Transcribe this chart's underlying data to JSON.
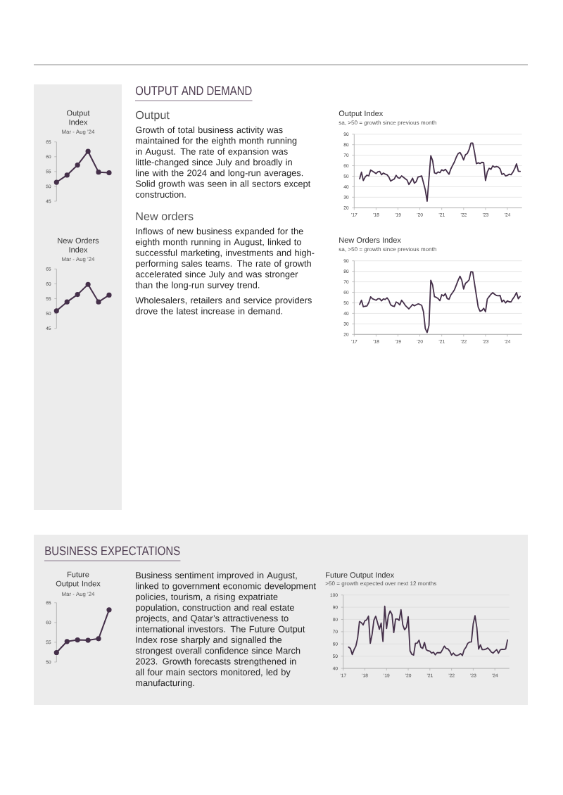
{
  "chart_data": [
    {
      "type": "line",
      "title": "Output Index",
      "subtitle": "Mar - Aug ’24",
      "categories": [
        null,
        null,
        null,
        null,
        null,
        null
      ],
      "values": [
        51.4,
        53.8,
        57.2,
        61.8,
        54.8,
        54.6
      ],
      "color": "#45304a",
      "ylim": [
        45,
        65
      ],
      "yticks": [
        45,
        50,
        55,
        60,
        65
      ],
      "marker": "circle",
      "tick_labels": "y"
    },
    {
      "type": "line",
      "title": "Output Index",
      "subtitle": "sa, >50 = growth since previous month",
      "x": [
        "2017-04",
        "2017-05",
        "2017-06",
        "2017-07",
        "2017-08",
        "2017-09",
        "2017-10",
        "2017-11",
        "2017-12",
        "2018-01",
        "2018-02",
        "2018-03",
        "2018-04",
        "2018-05",
        "2018-06",
        "2018-07",
        "2018-08",
        "2018-09",
        "2018-10",
        "2018-11",
        "2018-12",
        "2019-01",
        "2019-02",
        "2019-03",
        "2019-04",
        "2019-05",
        "2019-06",
        "2019-07",
        "2019-08",
        "2019-09",
        "2019-10",
        "2019-11",
        "2019-12",
        "2020-01",
        "2020-02",
        "2020-03",
        "2020-04",
        "2020-05",
        "2020-07",
        "2020-08",
        "2020-09",
        "2020-10",
        "2020-11",
        "2020-12",
        "2021-01",
        "2021-02",
        "2021-03",
        "2021-04",
        "2021-05",
        "2021-06",
        "2021-07",
        "2021-08",
        "2021-09",
        "2021-10",
        "2021-11",
        "2021-12",
        "2022-01",
        "2022-02",
        "2022-03",
        "2022-04",
        "2022-05",
        "2022-06",
        "2022-07",
        "2022-08",
        "2022-09",
        "2022-10",
        "2022-11",
        "2022-12",
        "2023-01",
        "2023-02",
        "2023-03",
        "2023-04",
        "2023-05",
        "2023-06",
        "2023-07",
        "2023-08",
        "2023-09",
        "2023-10",
        "2023-11",
        "2023-12",
        "2024-01",
        "2024-02",
        "2024-03",
        "2024-04",
        "2024-05",
        "2024-06",
        "2024-07",
        "2024-08"
      ],
      "values": [
        47.6,
        53.9,
        45.9,
        49.2,
        51.0,
        50.3,
        55.9,
        54.8,
        53.7,
        52.5,
        54.3,
        54.6,
        51.4,
        53.0,
        52.1,
        51.4,
        49.2,
        45.4,
        46.5,
        47.4,
        50.8,
        48.5,
        48.1,
        50.3,
        49.0,
        47.6,
        46.3,
        42.1,
        44.8,
        48.1,
        43.4,
        44.8,
        49.2,
        49.7,
        50.3,
        43.6,
        36.9,
        26.2,
        69.5,
        64.8,
        53.2,
        52.5,
        54.1,
        53.4,
        56.1,
        55.2,
        56.6,
        54.1,
        51.9,
        57.0,
        60.4,
        63.7,
        68.2,
        71.5,
        72.6,
        69.7,
        65.5,
        70.4,
        71.5,
        75.3,
        81.5,
        81.5,
        72.6,
        61.9,
        62.8,
        62.1,
        63.2,
        63.0,
        45.9,
        54.1,
        57.5,
        56.6,
        59.9,
        58.6,
        59.2,
        58.8,
        57.0,
        51.7,
        52.5,
        50.3,
        50.8,
        51.9,
        51.4,
        53.8,
        57.2,
        61.8,
        54.8,
        54.6
      ],
      "color": "#45304a",
      "xlim": [
        "2017-01",
        "2024-09"
      ],
      "xticks": [
        {
          "value": "2017-01",
          "label": "’17"
        },
        {
          "value": "2018-01",
          "label": "’18"
        },
        {
          "value": "2019-01",
          "label": "’19"
        },
        {
          "value": "2020-01",
          "label": "’20"
        },
        {
          "value": "2021-01",
          "label": "’21"
        },
        {
          "value": "2022-01",
          "label": "’22"
        },
        {
          "value": "2023-01",
          "label": "’23"
        },
        {
          "value": "2024-01",
          "label": "’24"
        }
      ],
      "ylim": [
        20,
        90
      ],
      "yticks": [
        20,
        30,
        40,
        50,
        60,
        70,
        80,
        90
      ],
      "grid": "y",
      "annotations": [
        "OUTPUT AND DEMAND",
        "Output",
        "Growth of total business activity was maintained for the eighth month running in August. The rate of expansion was little-changed since July and broadly in line with the 2024 and long-run averages. Solid growth was seen in all sectors except construction."
      ]
    },
    {
      "type": "line",
      "title": "New Orders Index",
      "subtitle": "Mar - Aug ’24",
      "categories": [
        null,
        null,
        null,
        null,
        null,
        null
      ],
      "values": [
        50.9,
        53.9,
        56.4,
        59.8,
        53.9,
        56.2
      ],
      "color": "#45304a",
      "ylim": [
        45,
        65
      ],
      "yticks": [
        45,
        50,
        55,
        60,
        65
      ],
      "marker": "circle",
      "tick_labels": "y"
    },
    {
      "type": "line",
      "title": "New Orders Index",
      "subtitle": "sa, >50 = growth since previous month",
      "x": [
        "2017-04",
        "2017-05",
        "2017-06",
        "2017-07",
        "2017-08",
        "2017-09",
        "2017-10",
        "2017-11",
        "2017-12",
        "2018-01",
        "2018-02",
        "2018-03",
        "2018-04",
        "2018-05",
        "2018-06",
        "2018-07",
        "2018-08",
        "2018-09",
        "2018-10",
        "2018-11",
        "2018-12",
        "2019-01",
        "2019-02",
        "2019-03",
        "2019-04",
        "2019-05",
        "2019-06",
        "2019-07",
        "2019-08",
        "2019-09",
        "2019-10",
        "2019-11",
        "2019-12",
        "2020-01",
        "2020-02",
        "2020-03",
        "2020-04",
        "2020-05",
        "2020-06",
        "2020-07",
        "2020-08",
        "2020-09",
        "2020-10",
        "2020-11",
        "2020-12",
        "2021-01",
        "2021-02",
        "2021-03",
        "2021-04",
        "2021-05",
        "2021-06",
        "2021-07",
        "2021-08",
        "2021-09",
        "2021-10",
        "2021-11",
        "2021-12",
        "2022-01",
        "2022-02",
        "2022-03",
        "2022-04",
        "2022-05",
        "2022-06",
        "2022-07",
        "2022-08",
        "2022-09",
        "2022-10",
        "2022-11",
        "2022-12",
        "2023-01",
        "2023-02",
        "2023-03",
        "2023-04",
        "2023-05",
        "2023-06",
        "2023-07",
        "2023-08",
        "2023-09",
        "2023-10",
        "2023-11",
        "2023-12",
        "2024-01",
        "2024-02",
        "2024-03",
        "2024-04",
        "2024-05",
        "2024-06",
        "2024-07",
        "2024-08"
      ],
      "values": [
        48.5,
        52.5,
        46.3,
        46.8,
        47.0,
        50.3,
        55.7,
        53.9,
        53.2,
        52.5,
        53.9,
        53.9,
        51.9,
        53.7,
        53.2,
        54.8,
        52.5,
        48.1,
        47.0,
        46.5,
        50.8,
        49.9,
        48.1,
        52.5,
        50.3,
        47.6,
        45.9,
        44.3,
        46.3,
        48.5,
        47.2,
        48.1,
        49.0,
        48.5,
        47.6,
        41.4,
        25.4,
        21.8,
        28.5,
        71.5,
        67.0,
        55.9,
        55.2,
        54.1,
        52.1,
        57.7,
        56.6,
        58.8,
        54.1,
        53.4,
        57.5,
        59.9,
        62.6,
        67.0,
        71.5,
        75.3,
        71.5,
        63.2,
        68.6,
        69.9,
        71.9,
        79.7,
        79.3,
        68.2,
        57.0,
        45.9,
        42.1,
        42.7,
        44.8,
        41.6,
        53.7,
        55.9,
        58.2,
        59.7,
        58.2,
        57.0,
        56.8,
        57.0,
        51.0,
        52.5,
        49.9,
        51.9,
        51.0,
        50.9,
        53.9,
        56.4,
        59.8,
        53.9,
        56.2
      ],
      "color": "#45304a",
      "xlim": [
        "2017-01",
        "2024-09"
      ],
      "xticks": [
        {
          "value": "2017-01",
          "label": "’17"
        },
        {
          "value": "2018-01",
          "label": "’18"
        },
        {
          "value": "2019-01",
          "label": "’19"
        },
        {
          "value": "2020-01",
          "label": "’20"
        },
        {
          "value": "2021-01",
          "label": "’21"
        },
        {
          "value": "2022-01",
          "label": "’22"
        },
        {
          "value": "2023-01",
          "label": "’23"
        },
        {
          "value": "2024-01",
          "label": "’24"
        }
      ],
      "ylim": [
        20,
        90
      ],
      "yticks": [
        20,
        30,
        40,
        50,
        60,
        70,
        80,
        90
      ],
      "grid": "y",
      "annotations": [
        "New orders",
        "Inflows of new business expanded for the eighth month running in August, linked to successful marketing, investments and high-performing sales teams. The rate of growth accelerated since July and was stronger than the long-run survey trend.",
        "Wholesalers, retailers and service providers drove the latest increase in demand."
      ]
    },
    {
      "type": "line",
      "title": "Future Output Index",
      "subtitle": "Mar - Aug ’24",
      "categories": [
        null,
        null,
        null,
        null,
        null,
        null
      ],
      "values": [
        52.4,
        55.2,
        55.6,
        55.5,
        55.9,
        63.2
      ],
      "color": "#45304a",
      "ylim": [
        50,
        65
      ],
      "yticks": [
        50,
        55,
        60,
        65
      ],
      "marker": "circle",
      "tick_labels": "y",
      "annotations": [
        "BUSINESS EXPECTATIONS"
      ]
    },
    {
      "type": "line",
      "title": "Future Output Index",
      "subtitle": ">50 = growth expected over next 12 months",
      "x": [
        "2017-04",
        "2017-05",
        "2017-06",
        "2017-07",
        "2017-08",
        "2017-09",
        "2017-10",
        "2017-11",
        "2017-12",
        "2018-01",
        "2018-02",
        "2018-03",
        "2018-04",
        "2018-05",
        "2018-06",
        "2018-07",
        "2018-08",
        "2018-09",
        "2018-10",
        "2018-11",
        "2018-12",
        "2019-01",
        "2019-02",
        "2019-03",
        "2019-04",
        "2019-05",
        "2019-06",
        "2019-07",
        "2019-08",
        "2019-09",
        "2019-10",
        "2019-11",
        "2019-12",
        "2020-01",
        "2020-02",
        "2020-03",
        "2020-04",
        "2020-05",
        "2020-06",
        "2020-07",
        "2020-08",
        "2020-09",
        "2020-10",
        "2020-11",
        "2020-12",
        "2021-01",
        "2021-02",
        "2021-03",
        "2021-04",
        "2021-05",
        "2021-06",
        "2021-07",
        "2021-08",
        "2021-09",
        "2021-10",
        "2021-11",
        "2021-12",
        "2022-01",
        "2022-02",
        "2022-03",
        "2022-04",
        "2022-05",
        "2022-06",
        "2022-07",
        "2022-08",
        "2022-09",
        "2022-10",
        "2022-11",
        "2022-12",
        "2023-01",
        "2023-02",
        "2023-03",
        "2023-04",
        "2023-05",
        "2023-06",
        "2023-07",
        "2023-08",
        "2023-09",
        "2023-10",
        "2023-11",
        "2023-12",
        "2024-01",
        "2024-02",
        "2024-03",
        "2024-04",
        "2024-05",
        "2024-06",
        "2024-07",
        "2024-08"
      ],
      "values": [
        57.4,
        56.3,
        51.3,
        55.3,
        58.2,
        64.9,
        78.3,
        77.4,
        75.5,
        78.9,
        79.7,
        82.7,
        60.5,
        67.8,
        79.3,
        82.6,
        77.4,
        72.0,
        77.0,
        62.0,
        90.8,
        72.6,
        83.1,
        87.0,
        84.1,
        69.3,
        80.3,
        80.4,
        79.3,
        87.9,
        75.5,
        71.6,
        73.5,
        82.2,
        54.4,
        51.5,
        50.9,
        60.5,
        60.7,
        63.0,
        57.3,
        56.3,
        61.1,
        55.3,
        54.4,
        54.0,
        52.5,
        53.2,
        51.1,
        52.8,
        52.8,
        52.8,
        55.3,
        58.2,
        56.3,
        55.9,
        54.0,
        50.9,
        52.5,
        50.9,
        50.5,
        51.1,
        52.1,
        50.5,
        55.3,
        57.3,
        60.5,
        61.5,
        61.7,
        76.4,
        83.1,
        73.5,
        55.7,
        59.2,
        55.3,
        55.3,
        55.7,
        56.7,
        55.3,
        53.4,
        52.5,
        54.0,
        55.3,
        52.4,
        55.2,
        55.6,
        55.5,
        55.9,
        63.2
      ],
      "color": "#45304a",
      "xlim": [
        "2017-01",
        "2024-09"
      ],
      "xticks": [
        {
          "value": "2017-01",
          "label": "’17"
        },
        {
          "value": "2018-01",
          "label": "’18"
        },
        {
          "value": "2019-01",
          "label": "’19"
        },
        {
          "value": "2020-01",
          "label": "’20"
        },
        {
          "value": "2021-01",
          "label": "’21"
        },
        {
          "value": "2022-01",
          "label": "’22"
        },
        {
          "value": "2023-01",
          "label": "’23"
        },
        {
          "value": "2024-01",
          "label": "’24"
        }
      ],
      "ylim": [
        40,
        100
      ],
      "yticks": [
        40,
        50,
        60,
        70,
        80,
        90,
        100
      ],
      "grid": "y",
      "annotations": [
        "Business sentiment improved in August, linked to government economic development policies, tourism, a rising expatriate population, construction and real estate projects, and Qatar’s attractiveness to international investors. The Future Output Index rose sharply and signalled the strongest overall confidence since March 2023. Growth forecasts strengthened in all four main sectors monitored, led by manufacturing."
      ]
    }
  ]
}
